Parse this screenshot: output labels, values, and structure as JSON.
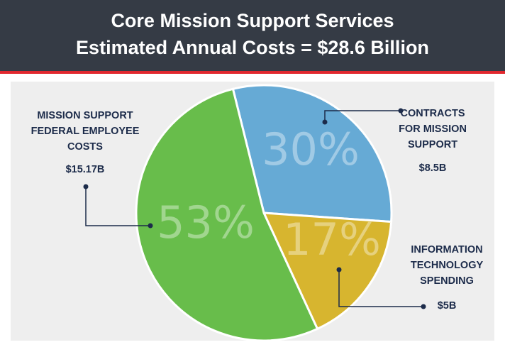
{
  "chart_data": {
    "type": "pie",
    "title": "Core Mission Support Services",
    "subtitle": "Estimated Annual Costs = $28.6 Billion",
    "categories": [
      "CONTRACTS\nFOR MISSION\nSUPPORT",
      "INFORMATION\nTECHNOLOGY\nSPENDING",
      "MISSION SUPPORT\nFEDERAL EMPLOYEE\nCOSTS"
    ],
    "values": [
      30,
      17,
      53
    ],
    "value_labels": [
      "30%",
      "17%",
      "53%"
    ],
    "amounts": [
      "$8.5B",
      "$5B",
      "$15.17B"
    ],
    "colors": [
      "#66aad5",
      "#d7b52f",
      "#68bd4b"
    ]
  }
}
